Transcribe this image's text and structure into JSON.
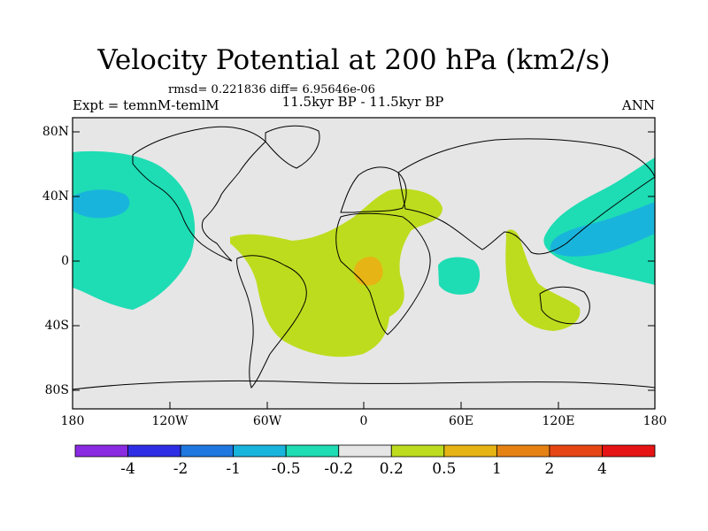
{
  "figure": {
    "title": "Velocity Potential at 200 hPa (km2/s)",
    "stats": "rmsd= 0.221836 diff= 6.95646e-06",
    "subtitle": "11.5kyr BP - 11.5kyr BP",
    "expt": "Expt = temnM-temlM",
    "season": "ANN"
  },
  "axes": {
    "lat_ticks": [
      "80N",
      "40N",
      "0",
      "40S",
      "80S"
    ],
    "lon_ticks": [
      "180",
      "120W",
      "60W",
      "0",
      "60E",
      "120E",
      "180"
    ]
  },
  "colorbar": {
    "labels": [
      "-4",
      "-2",
      "-1",
      "-0.5",
      "-0.2",
      "0.2",
      "0.5",
      "1",
      "2",
      "4"
    ],
    "colors": [
      "#8a2be2",
      "#2e2ee6",
      "#1e78e0",
      "#19b4dc",
      "#1edcb4",
      "#e6e6e6",
      "#bedc1e",
      "#e6b414",
      "#e68214",
      "#e64614",
      "#e61414"
    ]
  },
  "colors": {
    "background": "#e6e6e6",
    "neg_weak": "#1edcb4",
    "neg_mid": "#19b4dc",
    "pos_weak": "#bedc1e",
    "pos_mid": "#e6b414"
  }
}
